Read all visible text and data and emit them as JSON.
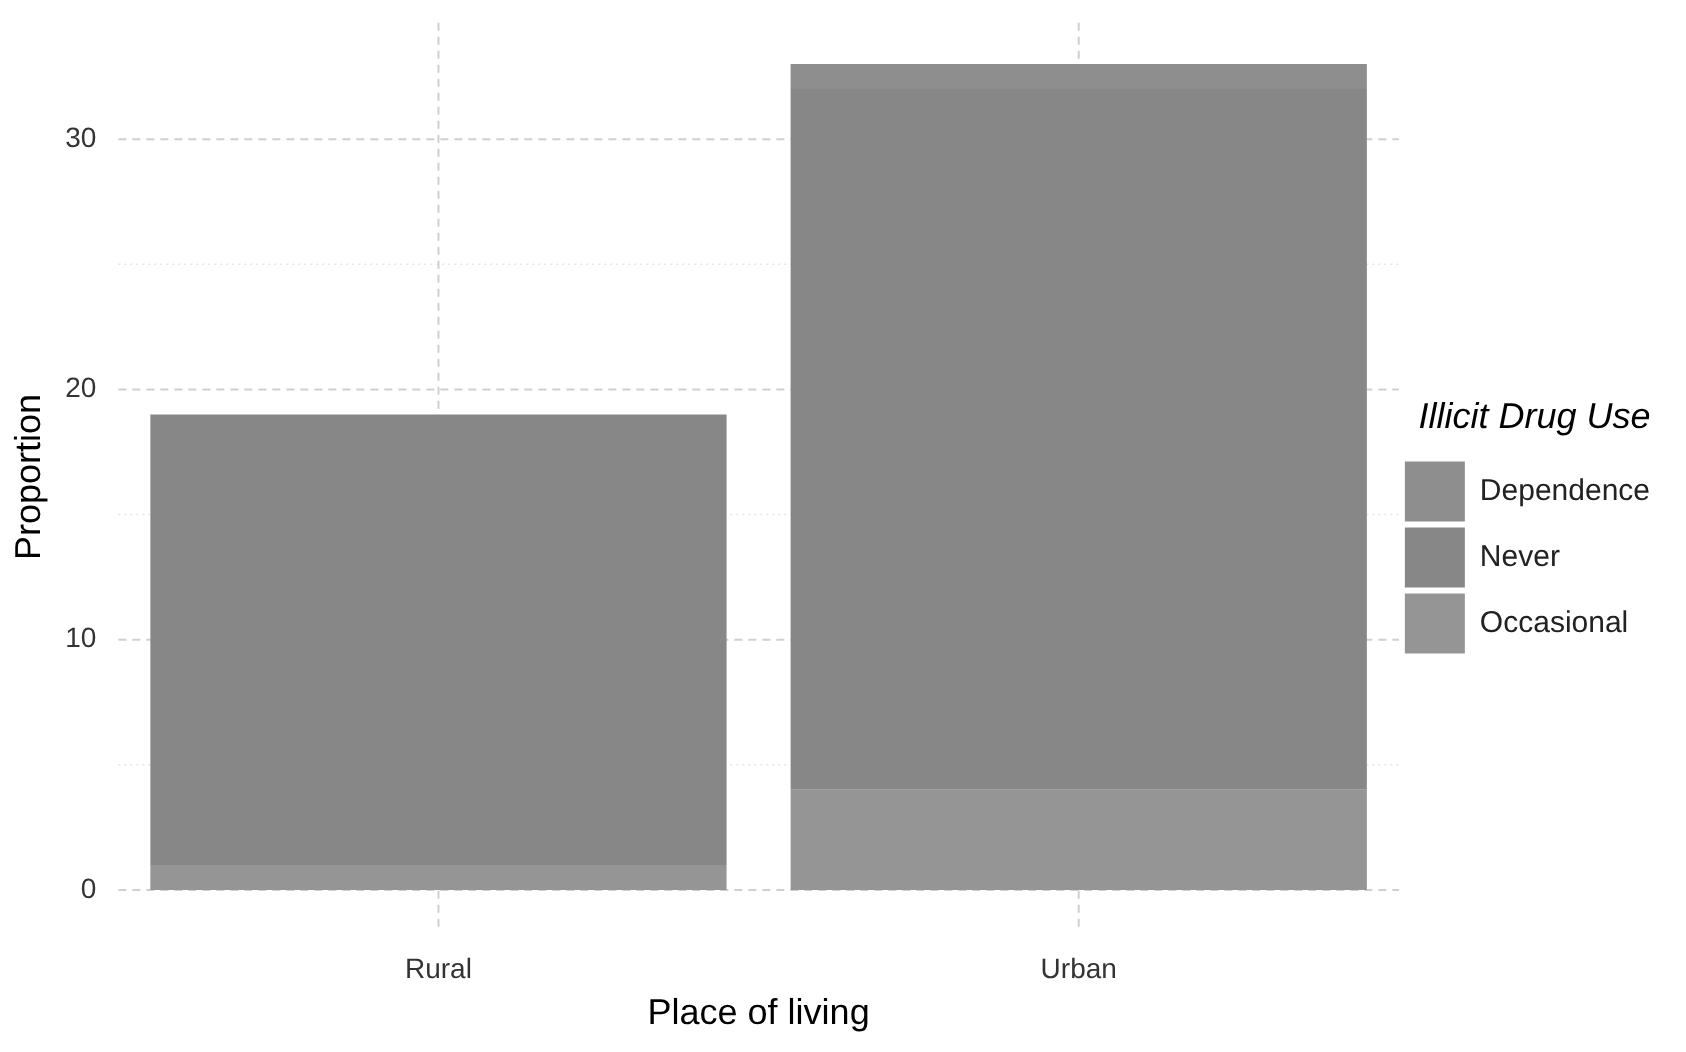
{
  "chart_data": {
    "type": "bar",
    "stacked": true,
    "xlabel": "Place of living",
    "ylabel": "Proportion",
    "legend_title": "Illicit Drug Use",
    "legend": "right",
    "grid": true,
    "categories": [
      "Rural",
      "Urban"
    ],
    "series": [
      {
        "name": "Occasional",
        "color": "#959595",
        "values": [
          1,
          4
        ]
      },
      {
        "name": "Never",
        "color": "#878787",
        "values": [
          18,
          28
        ]
      },
      {
        "name": "Dependence",
        "color": "#8e8e8e",
        "values": [
          0,
          1
        ]
      }
    ],
    "ylim": [
      -1.65,
      34.65
    ],
    "yticks": [
      0,
      {
        "value": 5,
        "label": null
      },
      10,
      {
        "value": 15,
        "label": null
      },
      20,
      {
        "value": 25,
        "label": null
      },
      30
    ]
  }
}
